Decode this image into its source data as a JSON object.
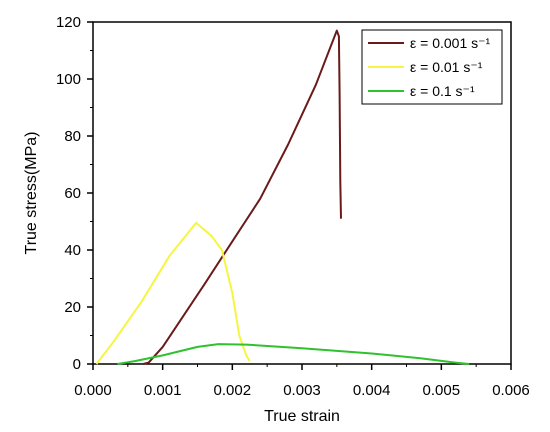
{
  "chart_data": {
    "type": "line",
    "title": "",
    "xlabel": "True strain",
    "ylabel": "True stress(MPa)",
    "xlim": [
      0,
      0.006
    ],
    "ylim": [
      0,
      120
    ],
    "xticks": [
      "0.000",
      "0.001",
      "0.002",
      "0.003",
      "0.004",
      "0.005",
      "0.006"
    ],
    "yticks": [
      "0",
      "20",
      "40",
      "60",
      "80",
      "100",
      "120"
    ],
    "grid": false,
    "legend_position": "top-right",
    "series": [
      {
        "name": "ε = 0.001 s⁻¹",
        "color": "#6b1a1a",
        "points": [
          [
            0.00072,
            0
          ],
          [
            0.0008,
            0.5
          ],
          [
            0.001,
            6
          ],
          [
            0.0013,
            17
          ],
          [
            0.0016,
            28
          ],
          [
            0.002,
            43
          ],
          [
            0.0024,
            58
          ],
          [
            0.0028,
            77
          ],
          [
            0.0032,
            98
          ],
          [
            0.0035,
            117
          ],
          [
            0.00353,
            115
          ],
          [
            0.00354,
            95
          ],
          [
            0.00355,
            64
          ],
          [
            0.00356,
            51
          ]
        ]
      },
      {
        "name": "ε = 0.01 s⁻¹",
        "color": "#f5f542",
        "points": [
          [
            5e-05,
            0
          ],
          [
            0.0003,
            8
          ],
          [
            0.0007,
            22
          ],
          [
            0.0011,
            38
          ],
          [
            0.00148,
            49.5
          ],
          [
            0.0017,
            45
          ],
          [
            0.00185,
            40
          ],
          [
            0.002,
            25
          ],
          [
            0.0021,
            10
          ],
          [
            0.0022,
            3
          ],
          [
            0.00225,
            1
          ]
        ]
      },
      {
        "name": "ε = 0.1 s⁻¹",
        "color": "#2fc12f",
        "points": [
          [
            0.00035,
            0
          ],
          [
            0.0006,
            1
          ],
          [
            0.001,
            3
          ],
          [
            0.0015,
            6
          ],
          [
            0.0018,
            7
          ],
          [
            0.0022,
            6.8
          ],
          [
            0.003,
            5.5
          ],
          [
            0.004,
            3.7
          ],
          [
            0.0047,
            2
          ],
          [
            0.0052,
            0.5
          ],
          [
            0.0054,
            0
          ]
        ]
      }
    ]
  }
}
